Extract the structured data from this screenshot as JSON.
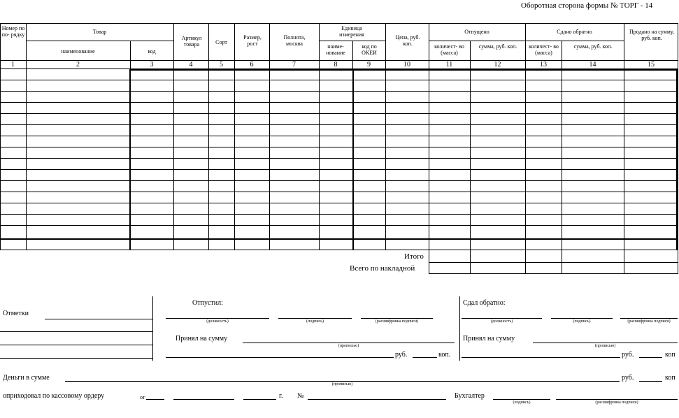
{
  "form_title": "Оборотная сторона формы № ТОРГ - 14",
  "header": {
    "row_no": "Номер по по- рядку",
    "goods": "Товар",
    "goods_name": "наименование",
    "goods_code": "код",
    "article": "Артикул товара",
    "grade": "Сорт",
    "size": "Размер, рост",
    "fullness": "Полнота, москва",
    "unit": "Единица измерения",
    "unit_name": "наиме- нование",
    "unit_okei": "код по ОКЕИ",
    "price": "Цена, руб. коп.",
    "released": "Отпущено",
    "released_qty": "количест- во (масса)",
    "released_sum": "сумма, руб. коп.",
    "returned": "Сдано обратно",
    "returned_qty": "количест- во (масса)",
    "returned_sum": "сумма, руб. коп.",
    "sold": "Продано на сумму, руб. коп."
  },
  "col_numbers": [
    "1",
    "2",
    "3",
    "4",
    "5",
    "6",
    "7",
    "8",
    "9",
    "10",
    "11",
    "12",
    "13",
    "14",
    "15"
  ],
  "totals": {
    "total": "Итого",
    "invoice_total": "Всего по накладной"
  },
  "footer": {
    "notes": "Отметки",
    "released_by": "Отпустил:",
    "returned_by": "Сдал обратно:",
    "accepted_sum": "Принял на сумму",
    "rub": "руб.",
    "kop": "коп.",
    "kop2": "коп",
    "money_sum": "Деньги в сумме",
    "credited": "оприходовал по кассовому ордеру",
    "from": "от",
    "year": "г.",
    "number": "№",
    "accountant": "Бухгалтер",
    "hint_position": "(должность)",
    "hint_signature": "(подпись)",
    "hint_decoding": "(расшифровка подписи)",
    "hint_words": "(прописью)"
  }
}
